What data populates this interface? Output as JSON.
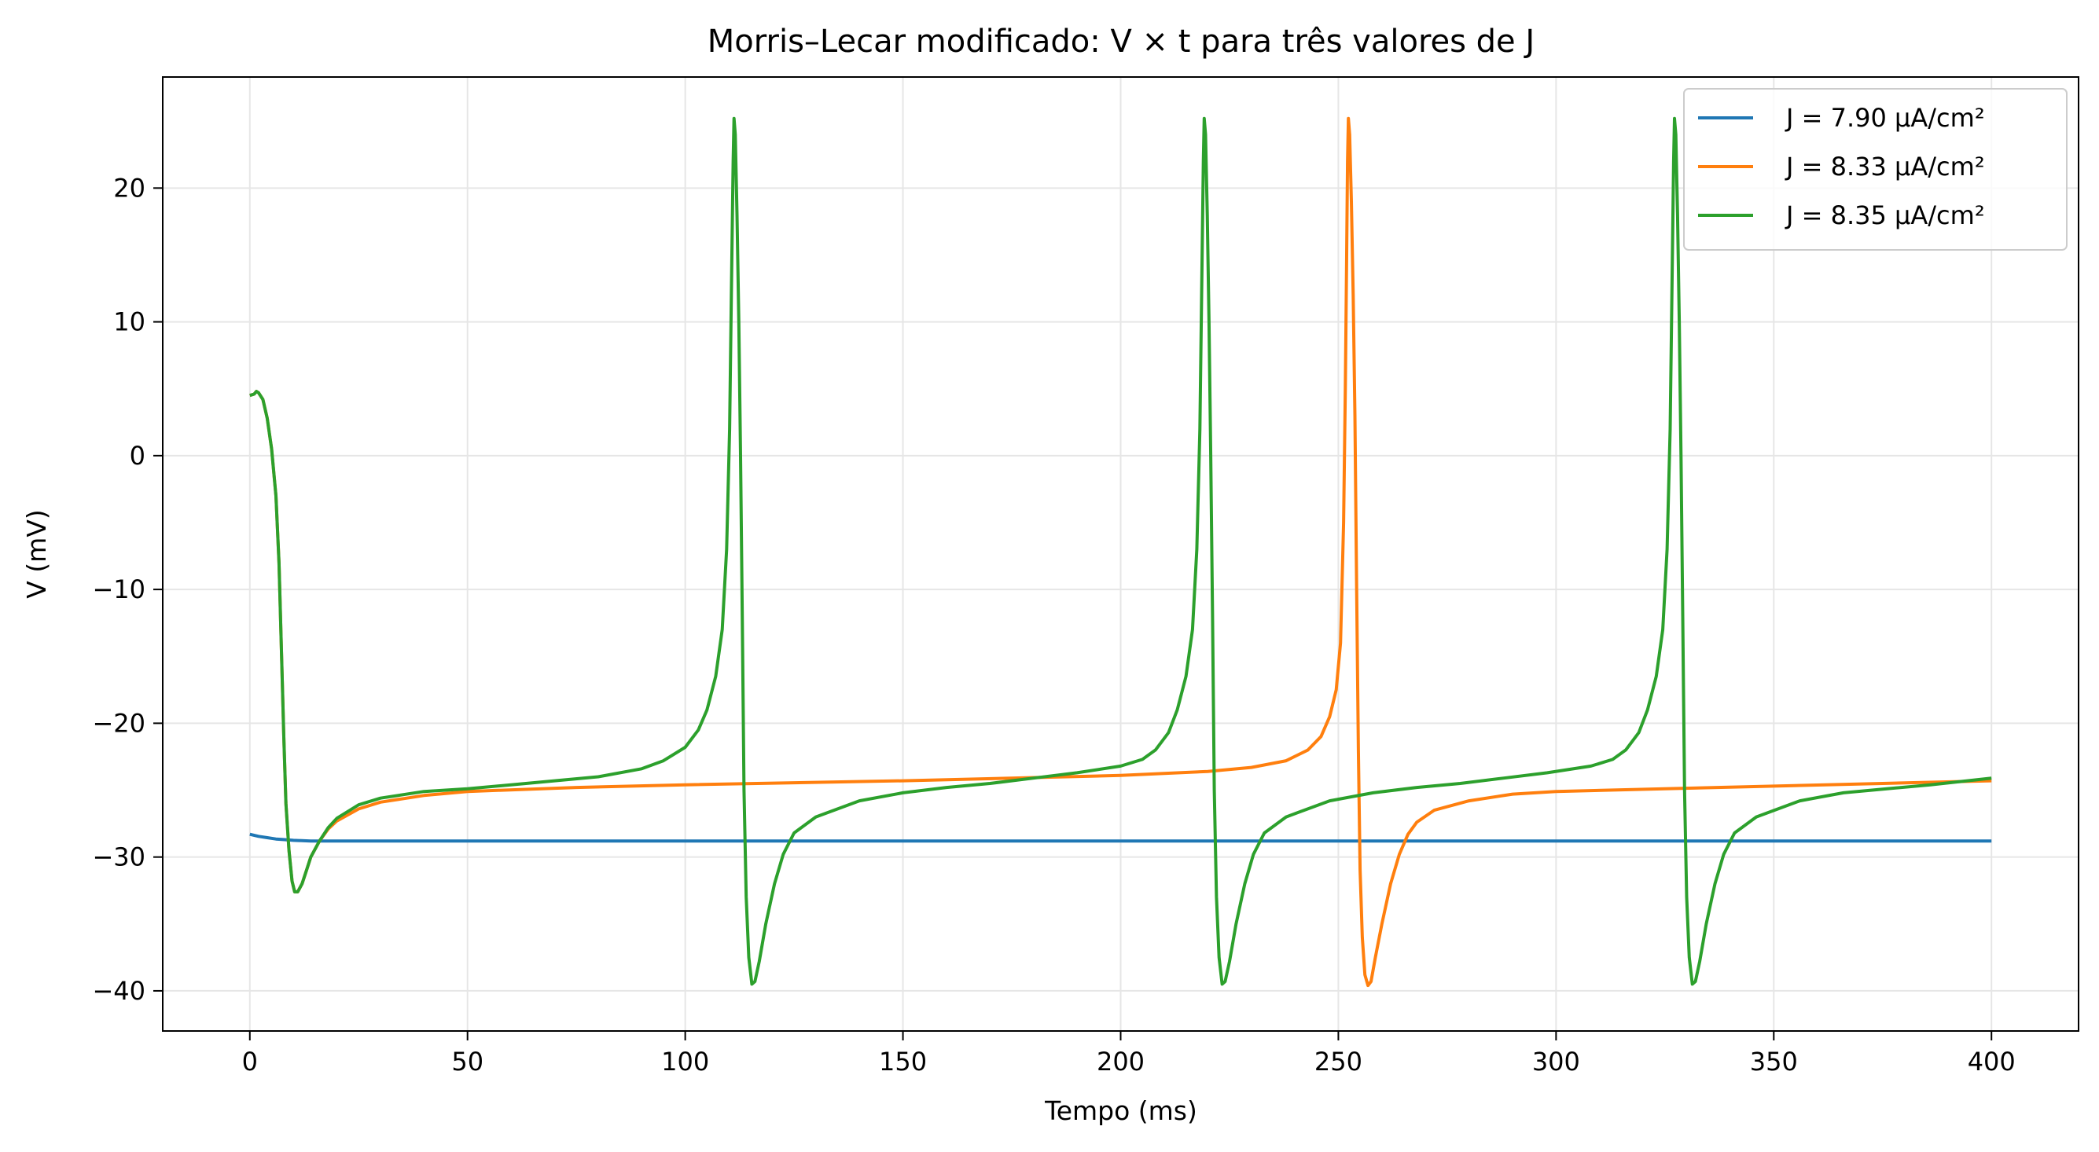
{
  "chart_data": {
    "type": "line",
    "title": "Morris–Lecar modificado: V × t para três valores de J",
    "xlabel": "Tempo (ms)",
    "ylabel": "V (mV)",
    "xlim": [
      -20,
      420
    ],
    "ylim": [
      -43,
      28.3
    ],
    "xticks": [
      0,
      50,
      100,
      150,
      200,
      250,
      300,
      350,
      400
    ],
    "yticks": [
      -40,
      -30,
      -20,
      -10,
      0,
      10,
      20
    ],
    "xtick_labels": [
      "0",
      "50",
      "100",
      "150",
      "200",
      "250",
      "300",
      "350",
      "400"
    ],
    "ytick_labels": [
      "−40",
      "−30",
      "−20",
      "−10",
      "0",
      "10",
      "20"
    ],
    "grid": true,
    "legend_position": "top-right",
    "series": [
      {
        "name": "J = 7.90 µA/cm²",
        "color": "#1f77b4",
        "points": [
          [
            0,
            -28.3
          ],
          [
            2,
            -28.45
          ],
          [
            4,
            -28.55
          ],
          [
            6,
            -28.65
          ],
          [
            8,
            -28.7
          ],
          [
            10,
            -28.75
          ],
          [
            14,
            -28.8
          ],
          [
            20,
            -28.8
          ],
          [
            400,
            -28.8
          ]
        ]
      },
      {
        "name": "J = 8.33 µA/cm²",
        "color": "#ff7f0e",
        "points": [
          [
            0,
            4.5
          ],
          [
            1,
            4.6
          ],
          [
            1.5,
            4.8
          ],
          [
            2,
            4.7
          ],
          [
            3,
            4.2
          ],
          [
            4,
            2.8
          ],
          [
            5,
            0.5
          ],
          [
            6,
            -3
          ],
          [
            6.7,
            -8
          ],
          [
            7.3,
            -15
          ],
          [
            7.8,
            -21
          ],
          [
            8.3,
            -26
          ],
          [
            9,
            -29.5
          ],
          [
            9.7,
            -31.8
          ],
          [
            10.3,
            -32.6
          ],
          [
            11,
            -32.6
          ],
          [
            12,
            -32
          ],
          [
            13,
            -31
          ],
          [
            14,
            -30
          ],
          [
            16,
            -28.8
          ],
          [
            18,
            -27.9
          ],
          [
            20,
            -27.3
          ],
          [
            25,
            -26.4
          ],
          [
            30,
            -25.9
          ],
          [
            40,
            -25.4
          ],
          [
            50,
            -25.1
          ],
          [
            75,
            -24.8
          ],
          [
            100,
            -24.6
          ],
          [
            150,
            -24.3
          ],
          [
            200,
            -23.9
          ],
          [
            220,
            -23.6
          ],
          [
            230,
            -23.3
          ],
          [
            238,
            -22.8
          ],
          [
            243,
            -22
          ],
          [
            246,
            -21
          ],
          [
            248,
            -19.5
          ],
          [
            249.5,
            -17.5
          ],
          [
            250.5,
            -14
          ],
          [
            251.2,
            -5
          ],
          [
            251.6,
            5
          ],
          [
            251.9,
            15
          ],
          [
            252.1,
            22
          ],
          [
            252.3,
            25.2
          ],
          [
            252.6,
            24
          ],
          [
            253,
            19
          ],
          [
            253.4,
            12
          ],
          [
            253.8,
            3
          ],
          [
            254.2,
            -10
          ],
          [
            254.6,
            -22
          ],
          [
            255,
            -31
          ],
          [
            255.5,
            -36
          ],
          [
            256.1,
            -38.8
          ],
          [
            256.8,
            -39.6
          ],
          [
            257.5,
            -39.3
          ],
          [
            258.5,
            -37.5
          ],
          [
            260,
            -35
          ],
          [
            262,
            -32
          ],
          [
            264,
            -29.8
          ],
          [
            266,
            -28.3
          ],
          [
            268,
            -27.4
          ],
          [
            272,
            -26.5
          ],
          [
            280,
            -25.8
          ],
          [
            290,
            -25.3
          ],
          [
            300,
            -25.1
          ],
          [
            325,
            -24.9
          ],
          [
            350,
            -24.7
          ],
          [
            375,
            -24.5
          ],
          [
            400,
            -24.3
          ]
        ]
      },
      {
        "name": "J = 8.35 µA/cm²",
        "color": "#2ca02c",
        "points": [
          [
            0,
            4.5
          ],
          [
            1,
            4.6
          ],
          [
            1.5,
            4.8
          ],
          [
            2,
            4.7
          ],
          [
            3,
            4.2
          ],
          [
            4,
            2.8
          ],
          [
            5,
            0.5
          ],
          [
            6,
            -3
          ],
          [
            6.7,
            -8
          ],
          [
            7.3,
            -15
          ],
          [
            7.8,
            -21
          ],
          [
            8.3,
            -26
          ],
          [
            9,
            -29.5
          ],
          [
            9.7,
            -31.8
          ],
          [
            10.3,
            -32.6
          ],
          [
            11,
            -32.6
          ],
          [
            12,
            -32
          ],
          [
            13,
            -31
          ],
          [
            14,
            -30
          ],
          [
            16,
            -28.8
          ],
          [
            18,
            -27.8
          ],
          [
            20,
            -27.1
          ],
          [
            25,
            -26.1
          ],
          [
            30,
            -25.6
          ],
          [
            40,
            -25.1
          ],
          [
            50,
            -24.9
          ],
          [
            60,
            -24.6
          ],
          [
            70,
            -24.3
          ],
          [
            80,
            -24
          ],
          [
            90,
            -23.4
          ],
          [
            95,
            -22.8
          ],
          [
            100,
            -21.8
          ],
          [
            103,
            -20.5
          ],
          [
            105,
            -19
          ],
          [
            107,
            -16.5
          ],
          [
            108.5,
            -13
          ],
          [
            109.5,
            -7
          ],
          [
            110.2,
            2
          ],
          [
            110.6,
            12
          ],
          [
            111,
            22
          ],
          [
            111.2,
            25.2
          ],
          [
            111.5,
            24
          ],
          [
            111.9,
            18
          ],
          [
            112.3,
            10
          ],
          [
            112.7,
            0
          ],
          [
            113.1,
            -12
          ],
          [
            113.5,
            -25
          ],
          [
            114,
            -33
          ],
          [
            114.6,
            -37.5
          ],
          [
            115.3,
            -39.5
          ],
          [
            116,
            -39.3
          ],
          [
            117,
            -37.8
          ],
          [
            118.5,
            -35
          ],
          [
            120.5,
            -32
          ],
          [
            122.5,
            -29.8
          ],
          [
            125,
            -28.2
          ],
          [
            130,
            -27
          ],
          [
            140,
            -25.8
          ],
          [
            150,
            -25.2
          ],
          [
            160,
            -24.8
          ],
          [
            170,
            -24.5
          ],
          [
            180,
            -24.1
          ],
          [
            190,
            -23.7
          ],
          [
            200,
            -23.2
          ],
          [
            205,
            -22.7
          ],
          [
            208,
            -22
          ],
          [
            211,
            -20.7
          ],
          [
            213,
            -19
          ],
          [
            215,
            -16.5
          ],
          [
            216.5,
            -13
          ],
          [
            217.5,
            -7
          ],
          [
            218.2,
            2
          ],
          [
            218.6,
            12
          ],
          [
            219,
            22
          ],
          [
            219.2,
            25.2
          ],
          [
            219.5,
            24
          ],
          [
            219.9,
            18
          ],
          [
            220.3,
            10
          ],
          [
            220.7,
            0
          ],
          [
            221.1,
            -12
          ],
          [
            221.5,
            -25
          ],
          [
            222,
            -33
          ],
          [
            222.6,
            -37.5
          ],
          [
            223.3,
            -39.5
          ],
          [
            224,
            -39.3
          ],
          [
            225,
            -37.8
          ],
          [
            226.5,
            -35
          ],
          [
            228.5,
            -32
          ],
          [
            230.5,
            -29.8
          ],
          [
            233,
            -28.2
          ],
          [
            238,
            -27
          ],
          [
            248,
            -25.8
          ],
          [
            258,
            -25.2
          ],
          [
            268,
            -24.8
          ],
          [
            278,
            -24.5
          ],
          [
            288,
            -24.1
          ],
          [
            298,
            -23.7
          ],
          [
            308,
            -23.2
          ],
          [
            313,
            -22.7
          ],
          [
            316,
            -22
          ],
          [
            319,
            -20.7
          ],
          [
            321,
            -19
          ],
          [
            323,
            -16.5
          ],
          [
            324.5,
            -13
          ],
          [
            325.5,
            -7
          ],
          [
            326.2,
            2
          ],
          [
            326.6,
            12
          ],
          [
            327,
            22
          ],
          [
            327.2,
            25.2
          ],
          [
            327.5,
            24
          ],
          [
            327.9,
            18
          ],
          [
            328.3,
            10
          ],
          [
            328.7,
            0
          ],
          [
            329.1,
            -12
          ],
          [
            329.5,
            -25
          ],
          [
            330,
            -33
          ],
          [
            330.6,
            -37.5
          ],
          [
            331.3,
            -39.5
          ],
          [
            332,
            -39.3
          ],
          [
            333,
            -37.8
          ],
          [
            334.5,
            -35
          ],
          [
            336.5,
            -32
          ],
          [
            338.5,
            -29.8
          ],
          [
            341,
            -28.2
          ],
          [
            346,
            -27
          ],
          [
            356,
            -25.8
          ],
          [
            366,
            -25.2
          ],
          [
            376,
            -24.9
          ],
          [
            386,
            -24.6
          ],
          [
            400,
            -24.1
          ]
        ]
      }
    ]
  }
}
